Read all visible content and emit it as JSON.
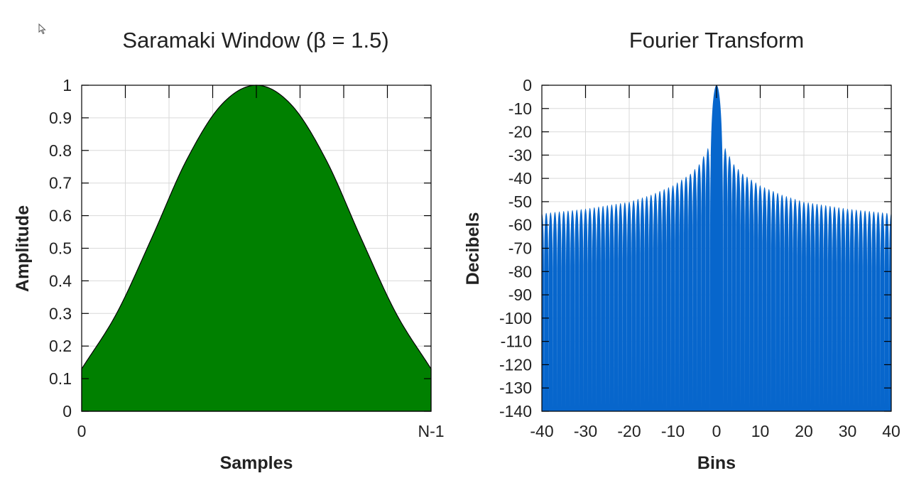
{
  "chart_data": [
    {
      "type": "area",
      "title": "Saramaki Window (β = 1.5)",
      "xlabel": "Samples",
      "ylabel": "Amplitude",
      "xlim": [
        0,
        1
      ],
      "ylim": [
        0,
        1
      ],
      "x_tick_labels": [
        "0",
        "N-1"
      ],
      "y_ticks": [
        0,
        0.1,
        0.2,
        0.3,
        0.4,
        0.5,
        0.6,
        0.7,
        0.8,
        0.9,
        1
      ],
      "y_tick_labels": [
        "0",
        "0.1",
        "0.2",
        "0.3",
        "0.4",
        "0.5",
        "0.6",
        "0.7",
        "0.8",
        "0.9",
        "1"
      ],
      "x": [
        0,
        0.1,
        0.2,
        0.3,
        0.4,
        0.5,
        0.6,
        0.7,
        0.8,
        0.9,
        1
      ],
      "y": [
        0.13,
        0.3,
        0.53,
        0.77,
        0.94,
        1.0,
        0.94,
        0.77,
        0.53,
        0.3,
        0.13
      ],
      "fill_color": "#008000",
      "grid": true
    },
    {
      "type": "area",
      "title": "Fourier Transform",
      "xlabel": "Bins",
      "ylabel": "Decibels",
      "xlim": [
        -40,
        40
      ],
      "ylim": [
        -140,
        0
      ],
      "x_ticks": [
        -40,
        -30,
        -20,
        -10,
        0,
        10,
        20,
        30,
        40
      ],
      "x_tick_labels": [
        "-40",
        "-30",
        "-20",
        "-10",
        "0",
        "10",
        "20",
        "30",
        "40"
      ],
      "y_ticks": [
        0,
        -10,
        -20,
        -30,
        -40,
        -50,
        -60,
        -70,
        -80,
        -90,
        -100,
        -110,
        -120,
        -130,
        -140
      ],
      "y_tick_labels": [
        "0",
        "-10",
        "-20",
        "-30",
        "-40",
        "-50",
        "-60",
        "-70",
        "-80",
        "-90",
        "-100",
        "-110",
        "-120",
        "-130",
        "-140"
      ],
      "mainlobe_half_width_bins": 1.5,
      "sidelobe_envelope": {
        "x": [
          2,
          4,
          6,
          10,
          15,
          20,
          30,
          40
        ],
        "y": [
          -27,
          -34,
          -38,
          -43,
          -47,
          -50,
          -53,
          -55
        ]
      },
      "fill_color": "#0766CC",
      "grid": true
    }
  ]
}
